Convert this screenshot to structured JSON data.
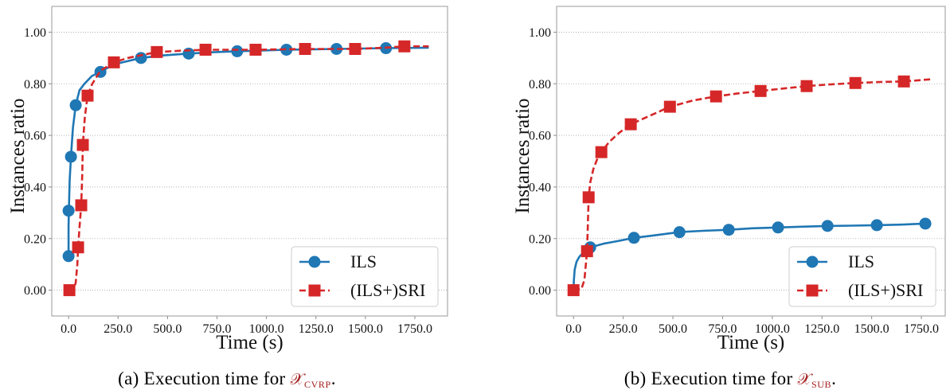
{
  "chart_data": [
    {
      "type": "line",
      "xlabel": "Time (s)",
      "ylabel": "Instances ratio",
      "xlim": [
        -85,
        1915
      ],
      "ylim": [
        -0.1,
        1.1
      ],
      "xticks": [
        0,
        250,
        500,
        750,
        1000,
        1250,
        1500,
        1750
      ],
      "xtick_labels": [
        "0.0",
        "250.0",
        "500.0",
        "750.0",
        "1000.0",
        "1250.0",
        "1500.0",
        "1750.0"
      ],
      "yticks": [
        0,
        0.2,
        0.4,
        0.6,
        0.8,
        1.0
      ],
      "ytick_labels": [
        "0.00",
        "0.20",
        "0.40",
        "0.60",
        "0.80",
        "1.00"
      ],
      "grid": true,
      "legend": "lower right",
      "series": [
        {
          "name": "ILS",
          "color": "#1f77b4",
          "marker": "circle",
          "linestyle": "solid",
          "x": [
            0,
            0,
            2,
            5,
            12,
            22,
            36,
            55,
            80,
            118,
            161,
            229,
            366,
            480,
            607,
            720,
            852,
            1101,
            1354,
            1604,
            1820
          ],
          "y": [
            0.132,
            0.25,
            0.32,
            0.42,
            0.517,
            0.63,
            0.717,
            0.775,
            0.8,
            0.83,
            0.846,
            0.875,
            0.9,
            0.91,
            0.917,
            0.922,
            0.926,
            0.932,
            0.935,
            0.938,
            0.94
          ],
          "markers": {
            "x": [
              0,
              0,
              12,
              36,
              161,
              366,
              607,
              852,
              1101,
              1354,
              1604
            ],
            "y": [
              0.132,
              0.308,
              0.517,
              0.717,
              0.846,
              0.9,
              0.917,
              0.926,
              0.932,
              0.935,
              0.938
            ]
          }
        },
        {
          "name": "(ILS+)SRI",
          "color": "#d62728",
          "marker": "square",
          "linestyle": "dashed",
          "x": [
            4,
            26,
            36,
            44,
            48,
            56,
            64,
            69,
            72,
            82,
            96,
            120,
            160,
            229,
            300,
            446,
            560,
            692,
            945,
            1195,
            1448,
            1600,
            1697,
            1820
          ],
          "y": [
            0,
            0,
            0.03,
            0.1,
            0.166,
            0.25,
            0.329,
            0.45,
            0.563,
            0.67,
            0.754,
            0.8,
            0.85,
            0.883,
            0.9,
            0.923,
            0.928,
            0.932,
            0.932,
            0.935,
            0.935,
            0.94,
            0.945,
            0.945
          ],
          "markers": {
            "x": [
              4,
              48,
              64,
              72,
              96,
              229,
              446,
              692,
              945,
              1195,
              1448,
              1697
            ],
            "y": [
              0,
              0.166,
              0.329,
              0.563,
              0.754,
              0.883,
              0.923,
              0.932,
              0.932,
              0.935,
              0.935,
              0.945
            ]
          }
        }
      ]
    },
    {
      "type": "line",
      "xlabel": "Time (s)",
      "ylabel": "Instances ratio",
      "xlim": [
        -85,
        1870
      ],
      "ylim": [
        -0.1,
        1.1
      ],
      "xticks": [
        0,
        250,
        500,
        750,
        1000,
        1250,
        1500,
        1750
      ],
      "xtick_labels": [
        "0.0",
        "250.0",
        "500.0",
        "750.0",
        "1000.0",
        "1250.0",
        "1500.0",
        "1750.0"
      ],
      "yticks": [
        0,
        0.2,
        0.4,
        0.6,
        0.8,
        1.0
      ],
      "ytick_labels": [
        "0.00",
        "0.20",
        "0.40",
        "0.60",
        "0.80",
        "1.00"
      ],
      "grid": true,
      "legend": "lower right",
      "series": [
        {
          "name": "ILS",
          "color": "#1f77b4",
          "marker": "circle",
          "linestyle": "solid",
          "x": [
            0,
            2,
            6,
            15,
            30,
            55,
            84,
            150,
            220,
            304,
            400,
            533,
            650,
            781,
            900,
            1029,
            1150,
            1278,
            1400,
            1526,
            1650,
            1770,
            1800
          ],
          "y": [
            0,
            0.04,
            0.08,
            0.11,
            0.13,
            0.15,
            0.166,
            0.18,
            0.19,
            0.203,
            0.212,
            0.225,
            0.23,
            0.234,
            0.24,
            0.243,
            0.246,
            0.249,
            0.25,
            0.252,
            0.254,
            0.258,
            0.258
          ],
          "markers": {
            "x": [
              84,
              304,
              533,
              781,
              1029,
              1278,
              1526,
              1770
            ],
            "y": [
              0.166,
              0.203,
              0.225,
              0.234,
              0.243,
              0.249,
              0.252,
              0.258
            ]
          }
        },
        {
          "name": "(ILS+)SRI",
          "color": "#d62728",
          "marker": "square",
          "linestyle": "dashed",
          "x": [
            0,
            40,
            55,
            62,
            68,
            72,
            76,
            85,
            100,
            120,
            140,
            180,
            230,
            288,
            380,
            485,
            600,
            717,
            820,
            941,
            1060,
            1173,
            1300,
            1418,
            1540,
            1662,
            1810
          ],
          "y": [
            0,
            0.005,
            0.04,
            0.1,
            0.151,
            0.25,
            0.36,
            0.42,
            0.47,
            0.51,
            0.535,
            0.575,
            0.61,
            0.643,
            0.675,
            0.711,
            0.735,
            0.751,
            0.762,
            0.772,
            0.782,
            0.791,
            0.798,
            0.803,
            0.807,
            0.809,
            0.818
          ],
          "markers": {
            "x": [
              0,
              68,
              76,
              140,
              288,
              485,
              717,
              941,
              1173,
              1418,
              1662
            ],
            "y": [
              0,
              0.151,
              0.36,
              0.535,
              0.643,
              0.711,
              0.751,
              0.772,
              0.791,
              0.803,
              0.809
            ]
          }
        }
      ]
    }
  ],
  "captions": [
    {
      "text": "(a) Execution time for ",
      "symbol": "𝒳",
      "subscript": "CVRP",
      "end": "."
    },
    {
      "text": "(b) Execution time for ",
      "symbol": "𝒳",
      "subscript": "SUB",
      "end": "."
    }
  ],
  "caption_symbol_color": "#a31b1b"
}
